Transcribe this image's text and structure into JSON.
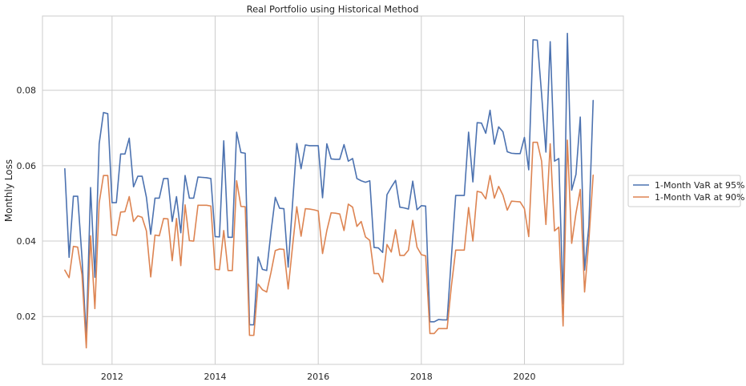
{
  "chart_data": {
    "type": "line",
    "title": "Real Portfolio using Historical Method",
    "xlabel": "",
    "ylabel": "Monthly Loss",
    "xlim": [
      2010.65,
      2021.92
    ],
    "ylim": [
      0.0073,
      0.0997
    ],
    "x_ticks": [
      2012,
      2014,
      2016,
      2018,
      2020
    ],
    "y_ticks": [
      0.02,
      0.04,
      0.06,
      0.08
    ],
    "grid": true,
    "legend_position": "right",
    "x_start": 2011.083333,
    "x_step": 0.083333,
    "series": [
      {
        "name": "1-Month VaR at 95%",
        "color": "#4c72b0",
        "values": [
          0.0592,
          0.0357,
          0.0519,
          0.0519,
          0.0356,
          0.0141,
          0.0542,
          0.0304,
          0.0658,
          0.0741,
          0.0738,
          0.0502,
          0.0502,
          0.0631,
          0.0631,
          0.0673,
          0.0544,
          0.0572,
          0.0572,
          0.0516,
          0.0418,
          0.0514,
          0.0514,
          0.0566,
          0.0566,
          0.0452,
          0.0518,
          0.0422,
          0.0574,
          0.0514,
          0.0514,
          0.057,
          0.0569,
          0.0568,
          0.0566,
          0.0412,
          0.0411,
          0.0666,
          0.041,
          0.041,
          0.0689,
          0.0635,
          0.0633,
          0.0178,
          0.0178,
          0.0358,
          0.0325,
          0.0322,
          0.0424,
          0.0516,
          0.0487,
          0.0486,
          0.0331,
          0.0496,
          0.0659,
          0.0592,
          0.0655,
          0.0653,
          0.0653,
          0.0653,
          0.0515,
          0.0658,
          0.0618,
          0.0617,
          0.0617,
          0.0656,
          0.0612,
          0.0619,
          0.0566,
          0.056,
          0.0556,
          0.056,
          0.0383,
          0.0382,
          0.037,
          0.0523,
          0.0543,
          0.0561,
          0.049,
          0.0488,
          0.0485,
          0.0559,
          0.0483,
          0.0494,
          0.0493,
          0.0186,
          0.0186,
          0.0192,
          0.0191,
          0.0191,
          0.0358,
          0.0521,
          0.0521,
          0.0521,
          0.0689,
          0.0557,
          0.0714,
          0.0713,
          0.0686,
          0.0747,
          0.0657,
          0.0703,
          0.069,
          0.0637,
          0.0633,
          0.0632,
          0.0632,
          0.0675,
          0.0589,
          0.0934,
          0.0933,
          0.0789,
          0.0636,
          0.0929,
          0.0612,
          0.0619,
          0.0233,
          0.0951,
          0.0535,
          0.0577,
          0.0729,
          0.0323,
          0.044,
          0.0773
        ]
      },
      {
        "name": "1-Month VaR at 90%",
        "color": "#dd8452",
        "values": [
          0.0323,
          0.0303,
          0.0386,
          0.0384,
          0.0311,
          0.0117,
          0.0414,
          0.0221,
          0.0501,
          0.0574,
          0.0574,
          0.0417,
          0.0415,
          0.0477,
          0.0478,
          0.0518,
          0.0452,
          0.0467,
          0.0463,
          0.0427,
          0.0305,
          0.0416,
          0.0414,
          0.046,
          0.0459,
          0.0348,
          0.046,
          0.0335,
          0.0496,
          0.0401,
          0.04,
          0.0495,
          0.0495,
          0.0495,
          0.0493,
          0.0325,
          0.0324,
          0.0428,
          0.0322,
          0.0322,
          0.056,
          0.0492,
          0.0491,
          0.015,
          0.015,
          0.0286,
          0.0271,
          0.0265,
          0.0317,
          0.0375,
          0.0379,
          0.0378,
          0.0273,
          0.0384,
          0.0491,
          0.0413,
          0.0486,
          0.0485,
          0.0483,
          0.048,
          0.0367,
          0.0428,
          0.0475,
          0.0474,
          0.0472,
          0.0428,
          0.0498,
          0.049,
          0.0439,
          0.0452,
          0.0411,
          0.0402,
          0.0314,
          0.0314,
          0.0291,
          0.0391,
          0.0371,
          0.043,
          0.0362,
          0.0362,
          0.0376,
          0.0455,
          0.0384,
          0.0364,
          0.0361,
          0.0155,
          0.0155,
          0.0168,
          0.0168,
          0.0168,
          0.0281,
          0.0376,
          0.0376,
          0.0376,
          0.0489,
          0.04,
          0.0532,
          0.0529,
          0.0512,
          0.0574,
          0.0514,
          0.0545,
          0.0522,
          0.0482,
          0.0506,
          0.0505,
          0.0504,
          0.0486,
          0.0412,
          0.0662,
          0.0662,
          0.0612,
          0.0444,
          0.0658,
          0.0427,
          0.0437,
          0.0175,
          0.0668,
          0.0394,
          0.0474,
          0.0537,
          0.0265,
          0.0402,
          0.0575
        ]
      }
    ]
  }
}
